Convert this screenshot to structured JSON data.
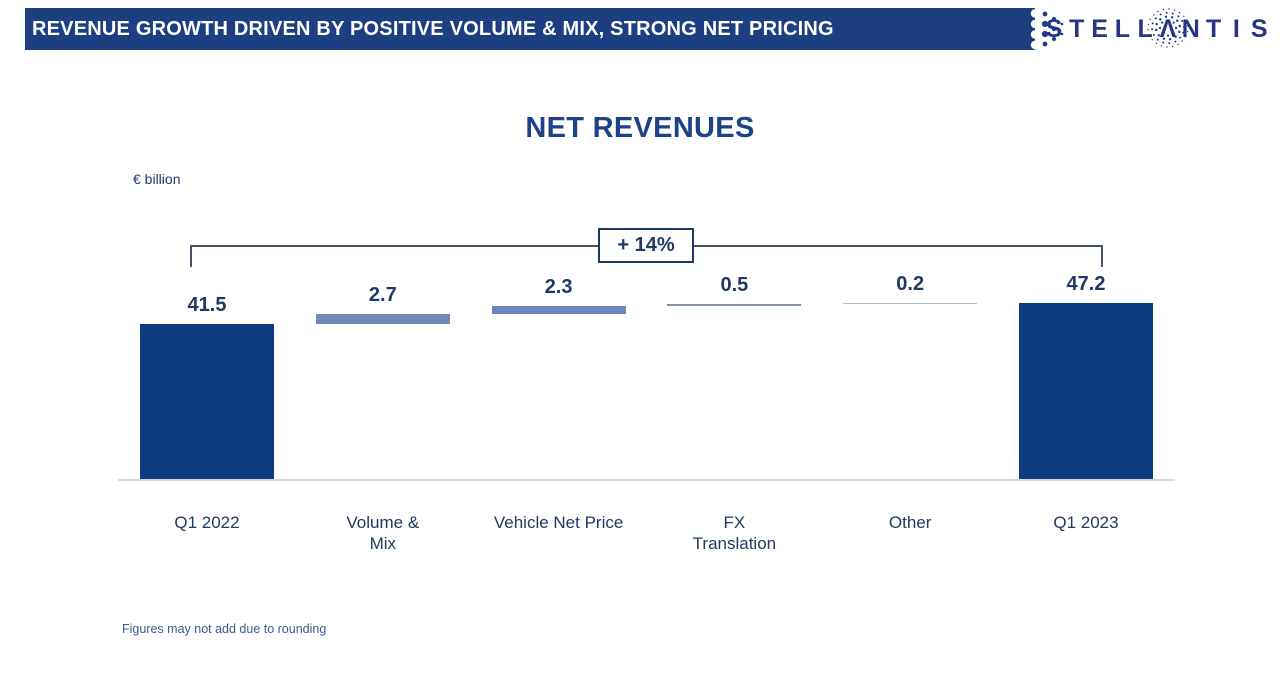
{
  "header": {
    "title": "REVENUE GROWTH DRIVEN BY POSITIVE VOLUME & MIX, STRONG NET PRICING",
    "bar_color": "#1d3e80"
  },
  "logo": {
    "brand": "STELLANTIS",
    "color": "#243782"
  },
  "chart_data": {
    "type": "bar",
    "subtype": "waterfall",
    "title": "NET REVENUES",
    "unit_label": "€ billion",
    "growth_annotation": "+ 14%",
    "footnote": "Figures may not add due to rounding",
    "categories": [
      "Q1 2022",
      "Volume &\nMix",
      "Vehicle Net Price",
      "FX\nTranslation",
      "Other",
      "Q1 2023"
    ],
    "values": [
      41.5,
      2.7,
      2.3,
      0.5,
      0.2,
      47.2
    ],
    "data_labels": [
      "41.5",
      "2.7",
      "2.3",
      "0.5",
      "0.2",
      "47.2"
    ],
    "segment_types": [
      "total",
      "delta",
      "delta",
      "delta",
      "delta",
      "total"
    ],
    "segment_colors": [
      "#0d3d80",
      "#7189b8",
      "#6b86b8",
      "#8291b0",
      "#b7bdc9",
      "#0d3d80"
    ],
    "ylim": [
      0,
      50
    ],
    "grid": false,
    "legend": false,
    "baseline_color": "#d9d9d9",
    "accent_navy": "#1f3864"
  }
}
